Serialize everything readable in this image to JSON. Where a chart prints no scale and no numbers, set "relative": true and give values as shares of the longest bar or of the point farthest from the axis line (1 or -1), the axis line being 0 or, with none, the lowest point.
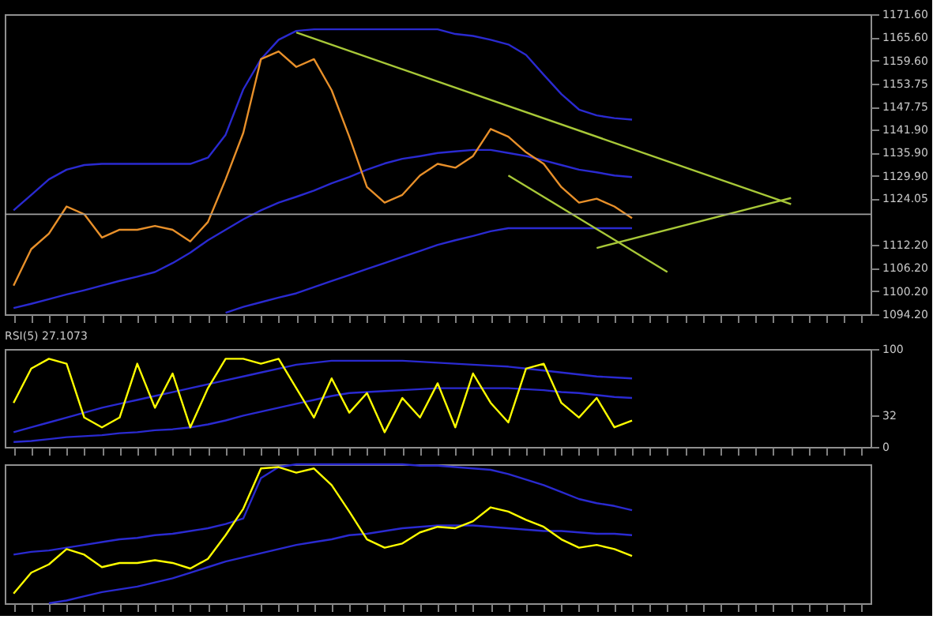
{
  "chart_data": [
    {
      "type": "line",
      "categories": [
        null,
        null,
        null,
        null,
        null,
        null,
        null,
        null,
        null,
        null,
        null,
        null,
        null,
        null,
        null,
        null,
        null,
        null,
        null,
        null,
        null,
        null,
        null,
        null,
        null,
        null,
        null,
        null,
        null,
        null,
        null,
        null,
        null,
        null,
        null,
        null,
        null,
        null,
        null,
        null,
        null,
        null,
        null,
        null,
        null,
        null,
        null,
        null,
        null
      ],
      "series": [
        {
          "color": "#2a2ad0",
          "values": [
            1121,
            1125,
            1129,
            1131.5,
            1132.7,
            1133,
            1133,
            1133,
            1133,
            1133,
            1133,
            1134.6,
            1140.5,
            1152.2,
            1160,
            1165,
            1167.3,
            1167.7,
            1167.7,
            1167.7,
            1167.7,
            1167.7,
            1167.7,
            1167.7,
            1167.7,
            1166.5,
            1166,
            1165,
            1163.8,
            1161.1,
            1156,
            1151,
            1147,
            1145.5,
            1144.8,
            1144.4,
            null,
            null,
            null,
            null,
            null,
            null,
            null,
            null,
            null,
            null,
            null,
            null,
            null
          ]
        },
        {
          "color": "#2a2ad0",
          "values": [
            1095.8,
            1096.9,
            1098.1,
            1099.3,
            1100.4,
            1101.6,
            1102.8,
            1103.9,
            1105.1,
            1107.4,
            1110.1,
            1113.3,
            1116,
            1118.7,
            1121,
            1123,
            1124.5,
            1126.1,
            1128,
            1129.6,
            1131.5,
            1133.1,
            1134.3,
            1135,
            1135.8,
            1136.2,
            1136.6,
            1136.6,
            1135.8,
            1135,
            1133.9,
            1132.7,
            1131.5,
            1130.8,
            1130,
            1129.6,
            null,
            null,
            null,
            null,
            null,
            null,
            null,
            null,
            null,
            null,
            null,
            null,
            null
          ]
        },
        {
          "color": "#2a2ad0",
          "values": [
            null,
            null,
            null,
            null,
            null,
            null,
            null,
            null,
            null,
            null,
            null,
            null,
            1094.6,
            1096.1,
            1097.3,
            1098.5,
            1099.6,
            1101.2,
            1102.8,
            1104.3,
            1105.9,
            1107.4,
            1109,
            1110.5,
            1112.1,
            1113.3,
            1114.4,
            1115.6,
            1116.4,
            1116.4,
            1116.4,
            1116.4,
            1116.4,
            1116.4,
            1116.4,
            1116.4,
            null,
            null,
            null,
            null,
            null,
            null,
            null,
            null,
            null,
            null,
            null,
            null,
            null
          ]
        },
        {
          "color": "#e8902a",
          "values": [
            1101.6,
            1111,
            1115,
            1122,
            1120,
            1114,
            1116,
            1116,
            1117,
            1116,
            1113,
            1118,
            1129,
            1141,
            1160,
            1162,
            1158,
            1160,
            1152,
            1140,
            1127,
            1123,
            1125,
            1130,
            1133,
            1132,
            1135,
            1142,
            1140,
            1136,
            1133,
            1127,
            1123,
            1124,
            1122,
            1119,
            null,
            null,
            null,
            null,
            null,
            null,
            null,
            null,
            null,
            null,
            null,
            null,
            null
          ]
        },
        {
          "color": "#a8c838",
          "values": [
            null,
            null,
            null,
            null,
            null,
            null,
            null,
            null,
            null,
            null,
            null,
            null,
            null,
            null,
            null,
            null,
            1166.9,
            null,
            null,
            null,
            null,
            null,
            null,
            null,
            null,
            null,
            null,
            null,
            null,
            null,
            null,
            null,
            null,
            null,
            null,
            null,
            null,
            null,
            null,
            null,
            null,
            null,
            null,
            null,
            1122.6,
            null,
            null,
            null,
            null
          ]
        },
        {
          "color": "#a8c838",
          "values": [
            null,
            null,
            null,
            null,
            null,
            null,
            null,
            null,
            null,
            null,
            null,
            null,
            null,
            null,
            null,
            null,
            null,
            null,
            null,
            null,
            null,
            null,
            null,
            null,
            null,
            null,
            null,
            null,
            1130,
            null,
            null,
            null,
            null,
            null,
            null,
            null,
            null,
            1105.1,
            null,
            null,
            null,
            null,
            null,
            null,
            null,
            null,
            null,
            null,
            null
          ]
        },
        {
          "color": "#a8c838",
          "values": [
            null,
            null,
            null,
            null,
            null,
            null,
            null,
            null,
            null,
            null,
            null,
            null,
            null,
            null,
            null,
            null,
            null,
            null,
            null,
            null,
            null,
            null,
            null,
            null,
            null,
            null,
            null,
            null,
            null,
            null,
            null,
            null,
            null,
            1111.3,
            null,
            null,
            null,
            null,
            null,
            null,
            null,
            null,
            null,
            null,
            1124.2,
            null,
            null,
            null,
            null
          ]
        }
      ],
      "ylim": [
        1094.2,
        1171.6
      ],
      "yticks": [
        {
          "value": 1171.6,
          "label": "1171.60"
        },
        {
          "value": 1165.6,
          "label": "1165.60"
        },
        {
          "value": 1159.6,
          "label": "1159.60"
        },
        {
          "value": 1153.75,
          "label": "1153.75"
        },
        {
          "value": 1147.75,
          "label": "1147.75"
        },
        {
          "value": 1141.9,
          "label": "1141.90"
        },
        {
          "value": 1135.9,
          "label": "1135.90"
        },
        {
          "value": 1129.9,
          "label": "1129.90"
        },
        {
          "value": 1124.05,
          "label": "1124.05"
        },
        {
          "value": 1112.2,
          "label": "1112.20"
        },
        {
          "value": 1106.2,
          "label": "1106.20"
        },
        {
          "value": 1100.2,
          "label": "1100.20"
        },
        {
          "value": 1094.2,
          "label": "1094.20"
        }
      ],
      "ref_lines": [
        {
          "axis": "y",
          "value": 1120,
          "color": "#a0a0a0"
        }
      ],
      "tick_labels": "y",
      "grid": false
    },
    {
      "type": "line",
      "title": "RSI(5) 27.1073",
      "categories": [
        null,
        null,
        null,
        null,
        null,
        null,
        null,
        null,
        null,
        null,
        null,
        null,
        null,
        null,
        null,
        null,
        null,
        null,
        null,
        null,
        null,
        null,
        null,
        null,
        null,
        null,
        null,
        null,
        null,
        null,
        null,
        null,
        null,
        null,
        null,
        null,
        null,
        null,
        null,
        null,
        null,
        null,
        null,
        null,
        null,
        null,
        null,
        null,
        null
      ],
      "series": [
        {
          "color": "#2a2ad0",
          "values": [
            15,
            20,
            25,
            30,
            35,
            40,
            44,
            48,
            52,
            56,
            60,
            64,
            68,
            72,
            76,
            80,
            84,
            86,
            88,
            88,
            88,
            88,
            88,
            87,
            86,
            85,
            84,
            83,
            82,
            80,
            78,
            76,
            74,
            72,
            71,
            70,
            null,
            null,
            null,
            null,
            null,
            null,
            null,
            null,
            null,
            null,
            null,
            null,
            null
          ]
        },
        {
          "color": "#2a2ad0",
          "values": [
            5,
            6,
            8,
            10,
            11,
            12,
            14,
            15,
            17,
            18,
            20,
            23,
            27,
            32,
            36,
            40,
            44,
            48,
            52,
            55,
            56,
            57,
            58,
            59,
            60,
            60,
            60,
            60,
            60,
            59,
            58,
            56,
            55,
            53,
            51,
            50,
            null,
            null,
            null,
            null,
            null,
            null,
            null,
            null,
            null,
            null,
            null,
            null,
            null
          ]
        },
        {
          "color": "#ffff00",
          "values": [
            45,
            80,
            90,
            85,
            30,
            20,
            30,
            85,
            40,
            75,
            20,
            60,
            90,
            90,
            85,
            90,
            60,
            30,
            70,
            35,
            55,
            15,
            50,
            30,
            65,
            20,
            75,
            45,
            25,
            80,
            85,
            45,
            30,
            50,
            20,
            27,
            null,
            null,
            null,
            null,
            null,
            null,
            null,
            null,
            null,
            null,
            null,
            null,
            null
          ]
        }
      ],
      "ylim": [
        0,
        100
      ],
      "yticks": [
        0,
        32,
        100
      ],
      "tick_labels": "y",
      "grid": false
    },
    {
      "type": "line",
      "relative": true,
      "categories": [
        null,
        null,
        null,
        null,
        null,
        null,
        null,
        null,
        null,
        null,
        null,
        null,
        null,
        null,
        null,
        null,
        null,
        null,
        null,
        null,
        null,
        null,
        null,
        null,
        null,
        null,
        null,
        null,
        null,
        null,
        null,
        null,
        null,
        null,
        null,
        null,
        null,
        null,
        null,
        null,
        null,
        null,
        null,
        null,
        null,
        null,
        null,
        null,
        null
      ],
      "series": [
        {
          "color": "#2a2ad0",
          "values": [
            0.35,
            0.37,
            0.38,
            0.4,
            0.42,
            0.44,
            0.46,
            0.47,
            0.49,
            0.5,
            0.52,
            0.54,
            0.57,
            0.61,
            0.9,
            0.98,
            1,
            1,
            1,
            1,
            1,
            1,
            1,
            0.99,
            0.99,
            0.98,
            0.97,
            0.96,
            0.93,
            0.89,
            0.85,
            0.8,
            0.75,
            0.72,
            0.7,
            0.67,
            null,
            null,
            null,
            null,
            null,
            null,
            null,
            null,
            null,
            null,
            null,
            null,
            null
          ]
        },
        {
          "color": "#2a2ad0",
          "values": [
            null,
            null,
            0,
            0.02,
            0.05,
            0.08,
            0.1,
            0.12,
            0.15,
            0.18,
            0.22,
            0.26,
            0.3,
            0.33,
            0.36,
            0.39,
            0.42,
            0.44,
            0.46,
            0.49,
            0.5,
            0.52,
            0.54,
            0.55,
            0.56,
            0.56,
            0.56,
            0.55,
            0.54,
            0.53,
            0.52,
            0.52,
            0.51,
            0.5,
            0.5,
            0.49,
            null,
            null,
            null,
            null,
            null,
            null,
            null,
            null,
            null,
            null,
            null,
            null,
            null
          ]
        },
        {
          "color": "#ffff00",
          "values": [
            0.07,
            0.22,
            0.28,
            0.39,
            0.35,
            0.26,
            0.29,
            0.29,
            0.31,
            0.29,
            0.25,
            0.32,
            0.49,
            0.68,
            0.97,
            0.98,
            0.94,
            0.97,
            0.85,
            0.66,
            0.46,
            0.4,
            0.43,
            0.51,
            0.55,
            0.54,
            0.59,
            0.69,
            0.66,
            0.6,
            0.55,
            0.46,
            0.4,
            0.42,
            0.39,
            0.34,
            null,
            null,
            null,
            null,
            null,
            null,
            null,
            null,
            null,
            null,
            null,
            null,
            null
          ]
        }
      ],
      "tick_labels": "y",
      "grid": false
    }
  ]
}
